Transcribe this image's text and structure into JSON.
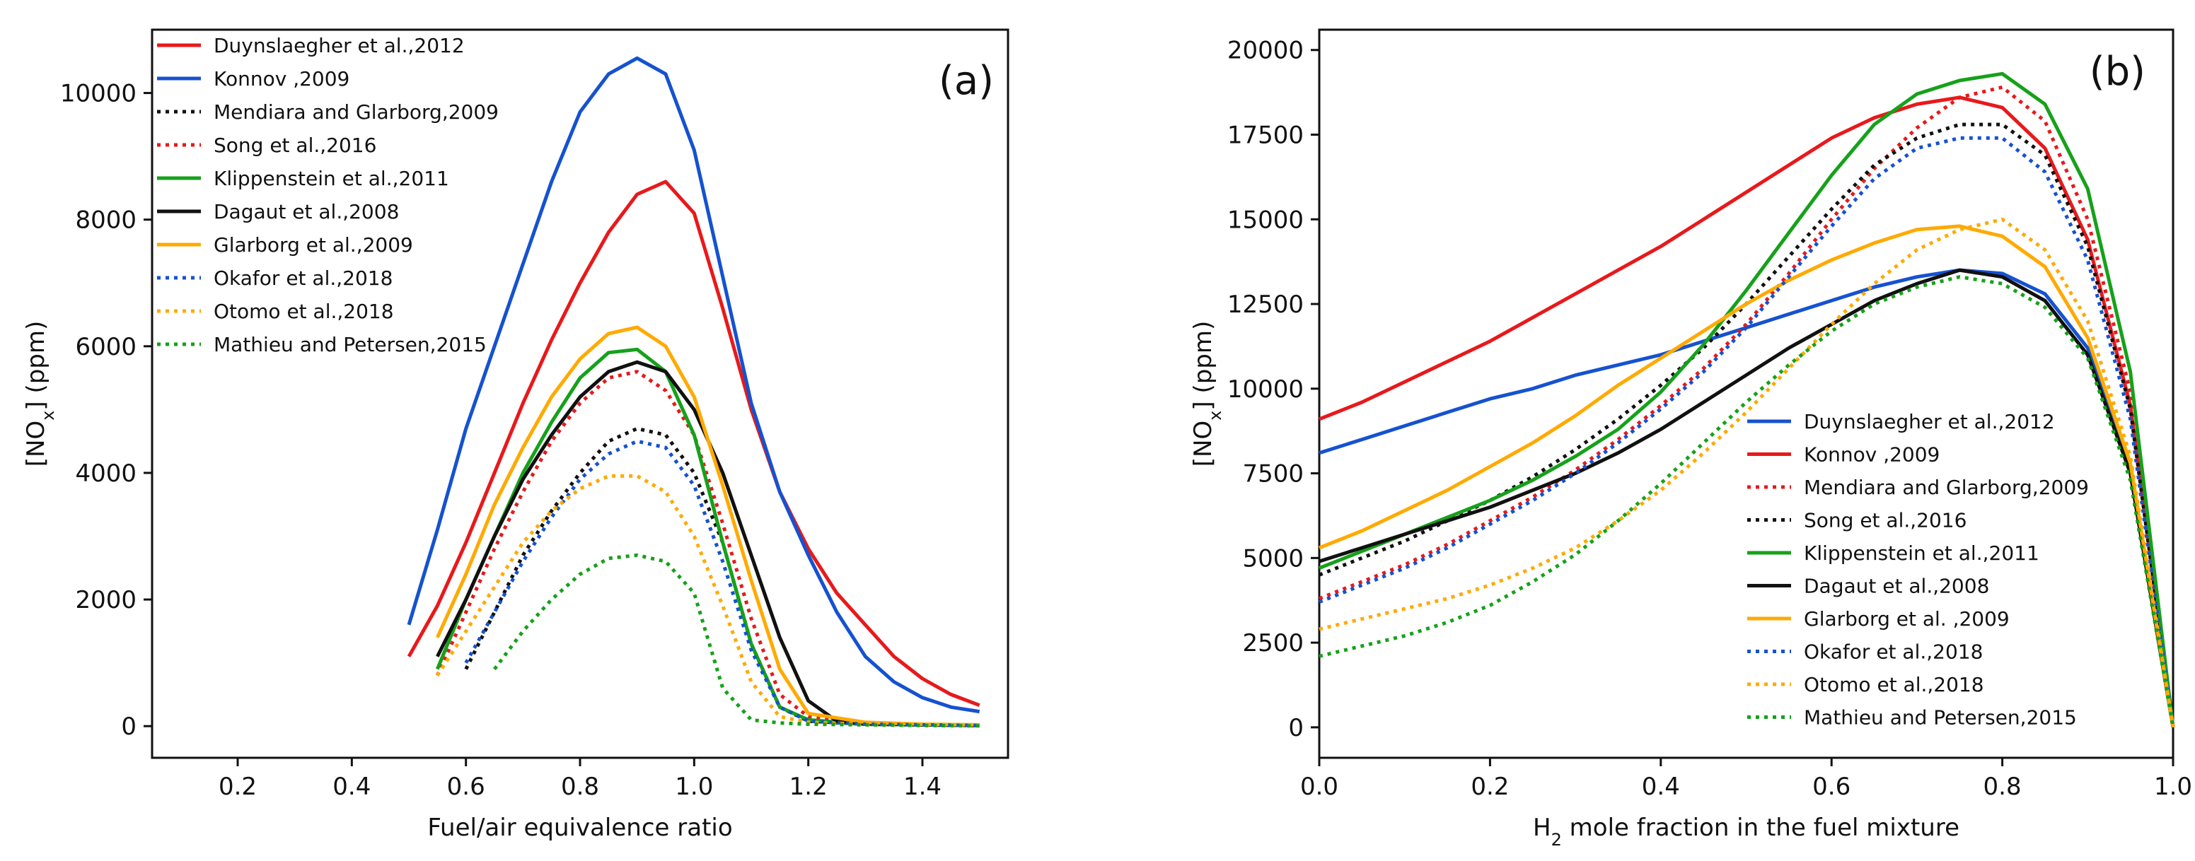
{
  "chart_data": [
    {
      "type": "line",
      "panel_label": "(a)",
      "xlabel": "Fuel/air equivalence ratio",
      "ylabel": "[NO",
      "ylabel_sub": "x",
      "ylabel_unit": "] (ppm)",
      "xlim": [
        0.05,
        1.55
      ],
      "ylim": [
        -500,
        11000
      ],
      "xticks": [
        0.2,
        0.4,
        0.6,
        0.8,
        1.0,
        1.2,
        1.4
      ],
      "xtick_labels": [
        "0.2",
        "0.4",
        "0.6",
        "0.8",
        "1.0",
        "1.2",
        "1.4"
      ],
      "yticks": [
        0,
        2000,
        4000,
        6000,
        8000,
        10000
      ],
      "ytick_labels": [
        "0",
        "2000",
        "4000",
        "6000",
        "8000",
        "10000"
      ],
      "legend_position": "top-left",
      "series": [
        {
          "name": "Duynslaegher et al.,2012",
          "color": "#e8191b",
          "style": "solid",
          "x": [
            0.5,
            0.55,
            0.6,
            0.65,
            0.7,
            0.75,
            0.8,
            0.85,
            0.9,
            0.95,
            1.0,
            1.05,
            1.1,
            1.15,
            1.2,
            1.25,
            1.3,
            1.35,
            1.4,
            1.45,
            1.5
          ],
          "y": [
            1100,
            1900,
            2900,
            4000,
            5100,
            6100,
            7000,
            7800,
            8400,
            8600,
            8100,
            6600,
            5000,
            3700,
            2800,
            2100,
            1600,
            1100,
            750,
            500,
            330
          ]
        },
        {
          "name": "Konnov ,2009",
          "color": "#1552d0",
          "style": "solid",
          "x": [
            0.5,
            0.55,
            0.6,
            0.65,
            0.7,
            0.75,
            0.8,
            0.85,
            0.9,
            0.95,
            1.0,
            1.05,
            1.1,
            1.15,
            1.2,
            1.25,
            1.3,
            1.35,
            1.4,
            1.45,
            1.5
          ],
          "y": [
            1600,
            3100,
            4700,
            6000,
            7300,
            8600,
            9700,
            10300,
            10550,
            10300,
            9100,
            7100,
            5100,
            3700,
            2700,
            1800,
            1100,
            700,
            450,
            300,
            230
          ]
        },
        {
          "name": "Mendiara and Glarborg,2009",
          "color": "#111111",
          "style": "dotted",
          "x": [
            0.6,
            0.65,
            0.7,
            0.75,
            0.8,
            0.85,
            0.9,
            0.95,
            1.0,
            1.05,
            1.1,
            1.15,
            1.2,
            1.3,
            1.4,
            1.5
          ],
          "y": [
            900,
            1800,
            2700,
            3400,
            4000,
            4500,
            4700,
            4600,
            4000,
            2900,
            1300,
            300,
            80,
            30,
            20,
            10
          ]
        },
        {
          "name": "Song et al.,2016",
          "color": "#e8191b",
          "style": "dotted",
          "x": [
            0.55,
            0.6,
            0.65,
            0.7,
            0.75,
            0.8,
            0.85,
            0.9,
            0.95,
            1.0,
            1.05,
            1.1,
            1.15,
            1.2,
            1.3,
            1.4,
            1.5
          ],
          "y": [
            800,
            1800,
            2800,
            3700,
            4500,
            5100,
            5500,
            5600,
            5300,
            4600,
            3200,
            1700,
            500,
            150,
            50,
            20,
            10
          ]
        },
        {
          "name": "Klippenstein et al.,2011",
          "color": "#16a11a",
          "style": "solid",
          "x": [
            0.55,
            0.6,
            0.65,
            0.7,
            0.75,
            0.8,
            0.85,
            0.9,
            0.95,
            1.0,
            1.05,
            1.1,
            1.15,
            1.2,
            1.3,
            1.4,
            1.5
          ],
          "y": [
            900,
            2000,
            3000,
            4000,
            4800,
            5500,
            5900,
            5950,
            5600,
            4600,
            2900,
            1300,
            300,
            100,
            30,
            20,
            10
          ]
        },
        {
          "name": "Dagaut et al.,2008",
          "color": "#111111",
          "style": "solid",
          "x": [
            0.55,
            0.6,
            0.65,
            0.7,
            0.75,
            0.8,
            0.85,
            0.9,
            0.95,
            1.0,
            1.05,
            1.1,
            1.15,
            1.2,
            1.25,
            1.3,
            1.4,
            1.5
          ],
          "y": [
            1100,
            2000,
            3000,
            3900,
            4600,
            5200,
            5600,
            5750,
            5600,
            5000,
            4000,
            2700,
            1400,
            400,
            80,
            40,
            20,
            10
          ]
        },
        {
          "name": "Glarborg et al.,2009",
          "color": "#ffaa00",
          "style": "solid",
          "x": [
            0.55,
            0.6,
            0.65,
            0.7,
            0.75,
            0.8,
            0.85,
            0.9,
            0.95,
            1.0,
            1.05,
            1.1,
            1.15,
            1.2,
            1.3,
            1.4,
            1.5
          ],
          "y": [
            1400,
            2400,
            3500,
            4400,
            5200,
            5800,
            6200,
            6300,
            6000,
            5200,
            3800,
            2300,
            900,
            200,
            60,
            30,
            20
          ]
        },
        {
          "name": "Okafor et al.,2018",
          "color": "#1552d0",
          "style": "dotted",
          "x": [
            0.6,
            0.65,
            0.7,
            0.75,
            0.8,
            0.85,
            0.9,
            0.95,
            1.0,
            1.05,
            1.1,
            1.15,
            1.2,
            1.3,
            1.4,
            1.5
          ],
          "y": [
            1000,
            1800,
            2600,
            3300,
            3900,
            4300,
            4500,
            4400,
            3800,
            2600,
            1200,
            300,
            80,
            30,
            20,
            10
          ]
        },
        {
          "name": "Otomo et al.,2018",
          "color": "#ffaa00",
          "style": "dotted",
          "x": [
            0.55,
            0.6,
            0.65,
            0.7,
            0.75,
            0.8,
            0.85,
            0.9,
            0.95,
            1.0,
            1.05,
            1.1,
            1.15,
            1.2,
            1.3,
            1.4,
            1.5
          ],
          "y": [
            800,
            1500,
            2200,
            2900,
            3400,
            3750,
            3950,
            3950,
            3700,
            3000,
            1900,
            700,
            150,
            60,
            30,
            20,
            10
          ]
        },
        {
          "name": "Mathieu and Petersen,2015",
          "color": "#16a11a",
          "style": "dotted",
          "x": [
            0.65,
            0.7,
            0.75,
            0.8,
            0.85,
            0.9,
            0.95,
            1.0,
            1.05,
            1.1,
            1.15,
            1.2,
            1.3,
            1.4,
            1.5
          ],
          "y": [
            900,
            1500,
            2000,
            2400,
            2650,
            2700,
            2600,
            2100,
            600,
            100,
            50,
            30,
            20,
            10,
            5
          ]
        }
      ]
    },
    {
      "type": "line",
      "panel_label": "(b)",
      "xlabel_pre": "H",
      "xlabel_sub": "2",
      "xlabel_post": " mole fraction in the fuel mixture",
      "ylabel": "[NO",
      "ylabel_sub": "x",
      "ylabel_unit": "] (ppm)",
      "xlim": [
        0.0,
        1.0
      ],
      "ylim": [
        -900,
        20600
      ],
      "xticks": [
        0.0,
        0.2,
        0.4,
        0.6,
        0.8,
        1.0
      ],
      "xtick_labels": [
        "0.0",
        "0.2",
        "0.4",
        "0.6",
        "0.8",
        "1.0"
      ],
      "yticks": [
        0,
        2500,
        5000,
        7500,
        10000,
        12500,
        15000,
        17500,
        20000
      ],
      "ytick_labels": [
        "0",
        "2500",
        "5000",
        "7500",
        "10000",
        "12500",
        "15000",
        "17500",
        "20000"
      ],
      "legend_position": "lower-right",
      "series": [
        {
          "name": "Duynslaegher et al.,2012",
          "color": "#1552d0",
          "style": "solid",
          "x": [
            0,
            0.05,
            0.1,
            0.15,
            0.2,
            0.25,
            0.3,
            0.35,
            0.4,
            0.45,
            0.5,
            0.55,
            0.6,
            0.65,
            0.7,
            0.75,
            0.8,
            0.85,
            0.9,
            0.95,
            1.0
          ],
          "y": [
            8100,
            8500,
            8900,
            9300,
            9700,
            10000,
            10400,
            10700,
            11000,
            11400,
            11800,
            12200,
            12600,
            13000,
            13300,
            13500,
            13400,
            12800,
            11200,
            7600,
            0
          ]
        },
        {
          "name": "Konnov ,2009",
          "color": "#e8191b",
          "style": "solid",
          "x": [
            0,
            0.05,
            0.1,
            0.15,
            0.2,
            0.25,
            0.3,
            0.35,
            0.4,
            0.45,
            0.5,
            0.55,
            0.6,
            0.65,
            0.7,
            0.75,
            0.8,
            0.85,
            0.9,
            0.95,
            1.0
          ],
          "y": [
            9100,
            9600,
            10200,
            10800,
            11400,
            12100,
            12800,
            13500,
            14200,
            15000,
            15800,
            16600,
            17400,
            18000,
            18400,
            18600,
            18300,
            17100,
            14400,
            9500,
            0
          ]
        },
        {
          "name": "Mendiara and Glarborg,2009",
          "color": "#e8191b",
          "style": "dotted",
          "x": [
            0,
            0.05,
            0.1,
            0.15,
            0.2,
            0.25,
            0.3,
            0.35,
            0.4,
            0.45,
            0.5,
            0.55,
            0.6,
            0.65,
            0.7,
            0.75,
            0.8,
            0.85,
            0.9,
            0.95,
            1.0
          ],
          "y": [
            3800,
            4300,
            4800,
            5400,
            6100,
            6800,
            7600,
            8500,
            9500,
            10600,
            11900,
            13400,
            15000,
            16500,
            17700,
            18600,
            18900,
            17900,
            15000,
            9900,
            0
          ]
        },
        {
          "name": "Song et al.,2016",
          "color": "#111111",
          "style": "dotted",
          "x": [
            0,
            0.05,
            0.1,
            0.15,
            0.2,
            0.25,
            0.3,
            0.35,
            0.4,
            0.45,
            0.5,
            0.55,
            0.6,
            0.65,
            0.7,
            0.75,
            0.8,
            0.85,
            0.9,
            0.95,
            1.0
          ],
          "y": [
            4500,
            5000,
            5500,
            6100,
            6700,
            7400,
            8200,
            9100,
            10100,
            11200,
            12500,
            13900,
            15300,
            16600,
            17400,
            17800,
            17800,
            16900,
            14200,
            9400,
            0
          ]
        },
        {
          "name": "Klippenstein et al.,2011",
          "color": "#16a11a",
          "style": "solid",
          "x": [
            0,
            0.05,
            0.1,
            0.15,
            0.2,
            0.25,
            0.3,
            0.35,
            0.4,
            0.45,
            0.5,
            0.55,
            0.6,
            0.65,
            0.7,
            0.75,
            0.8,
            0.85,
            0.9,
            0.95,
            1.0
          ],
          "y": [
            4700,
            5200,
            5700,
            6200,
            6700,
            7300,
            8000,
            8800,
            9900,
            11300,
            12900,
            14600,
            16300,
            17800,
            18700,
            19100,
            19300,
            18400,
            15900,
            10500,
            0
          ]
        },
        {
          "name": "Dagaut et al.,2008",
          "color": "#111111",
          "style": "solid",
          "x": [
            0,
            0.05,
            0.1,
            0.15,
            0.2,
            0.25,
            0.3,
            0.35,
            0.4,
            0.45,
            0.5,
            0.55,
            0.6,
            0.65,
            0.7,
            0.75,
            0.8,
            0.85,
            0.9,
            0.95,
            1.0
          ],
          "y": [
            4900,
            5300,
            5700,
            6100,
            6500,
            7000,
            7500,
            8100,
            8800,
            9600,
            10400,
            11200,
            11900,
            12600,
            13100,
            13500,
            13300,
            12600,
            11000,
            7500,
            0
          ]
        },
        {
          "name": "Glarborg et al. ,2009",
          "color": "#ffaa00",
          "style": "solid",
          "x": [
            0,
            0.05,
            0.1,
            0.15,
            0.2,
            0.25,
            0.3,
            0.35,
            0.4,
            0.45,
            0.5,
            0.55,
            0.6,
            0.65,
            0.7,
            0.75,
            0.8,
            0.85,
            0.9,
            0.95,
            1.0
          ],
          "y": [
            5300,
            5800,
            6400,
            7000,
            7700,
            8400,
            9200,
            10100,
            10900,
            11700,
            12500,
            13200,
            13800,
            14300,
            14700,
            14800,
            14500,
            13600,
            11500,
            7800,
            0
          ]
        },
        {
          "name": "Okafor et al.,2018",
          "color": "#1552d0",
          "style": "dotted",
          "x": [
            0,
            0.05,
            0.1,
            0.15,
            0.2,
            0.25,
            0.3,
            0.35,
            0.4,
            0.45,
            0.5,
            0.55,
            0.6,
            0.65,
            0.7,
            0.75,
            0.8,
            0.85,
            0.9,
            0.95,
            1.0
          ],
          "y": [
            3700,
            4200,
            4700,
            5300,
            6000,
            6700,
            7500,
            8400,
            9400,
            10500,
            11800,
            13300,
            14800,
            16200,
            17100,
            17400,
            17400,
            16400,
            13800,
            9100,
            0
          ]
        },
        {
          "name": "Otomo et al.,2018",
          "color": "#ffaa00",
          "style": "dotted",
          "x": [
            0,
            0.05,
            0.1,
            0.15,
            0.2,
            0.25,
            0.3,
            0.35,
            0.4,
            0.45,
            0.5,
            0.55,
            0.6,
            0.65,
            0.7,
            0.75,
            0.8,
            0.85,
            0.9,
            0.95,
            1.0
          ],
          "y": [
            2900,
            3200,
            3500,
            3800,
            4200,
            4700,
            5300,
            6100,
            7000,
            8100,
            9300,
            10600,
            11900,
            13100,
            14100,
            14700,
            15000,
            14100,
            12000,
            8000,
            0
          ]
        },
        {
          "name": "Mathieu and Petersen,2015",
          "color": "#16a11a",
          "style": "dotted",
          "x": [
            0,
            0.05,
            0.1,
            0.15,
            0.2,
            0.25,
            0.3,
            0.35,
            0.4,
            0.45,
            0.5,
            0.55,
            0.6,
            0.65,
            0.7,
            0.75,
            0.8,
            0.85,
            0.9,
            0.95,
            1.0
          ],
          "y": [
            2100,
            2400,
            2700,
            3100,
            3600,
            4300,
            5100,
            6100,
            7200,
            8400,
            9600,
            10700,
            11700,
            12500,
            13000,
            13300,
            13100,
            12400,
            10900,
            7300,
            0
          ]
        }
      ]
    }
  ]
}
